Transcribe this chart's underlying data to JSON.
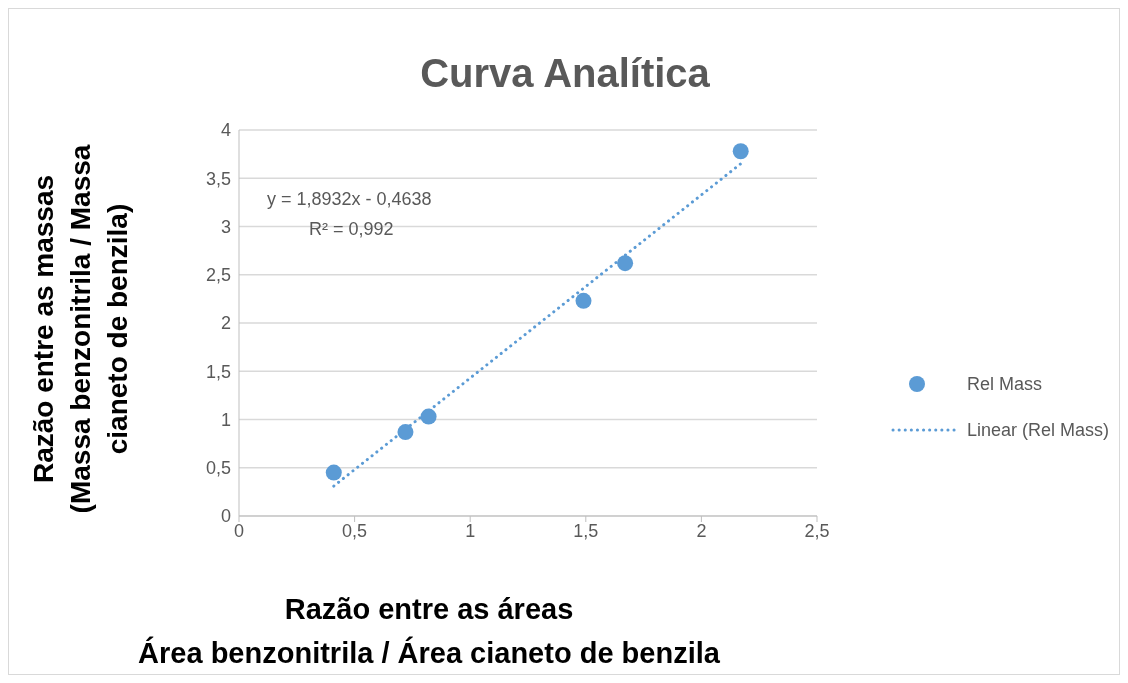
{
  "chart_data": {
    "type": "scatter",
    "title": "Curva Analítica",
    "xlabel": "Razão entre as áreas\nÁrea benzonitrila / Área cianeto de benzila",
    "ylabel": "Razão entre as massas\n(Massa benzonitrila / Massa\ncianeto de benzila)",
    "series": [
      {
        "name": "Rel Mass",
        "color": "#5b9bd5",
        "x": [
          0.41,
          0.72,
          0.82,
          1.49,
          1.67,
          2.17
        ],
        "values": [
          0.45,
          0.87,
          1.03,
          2.23,
          2.62,
          3.78
        ],
        "marker": "circle"
      },
      {
        "name": "Linear (Rel Mass)",
        "type": "line",
        "color": "#5b9bd5",
        "x": [
          0.41,
          2.17
        ],
        "values": [
          0.31,
          3.65
        ],
        "marker": "none",
        "line_style": "dotted"
      }
    ],
    "annotations": [
      "y = 1,8932x - 0,4638",
      "R² = 0,992"
    ],
    "xlim": [
      0,
      2.5
    ],
    "xticks": [
      0,
      {
        "value": 0.5,
        "label": "0,5"
      },
      1,
      {
        "value": 1.5,
        "label": "1,5"
      },
      2,
      {
        "value": 2.5,
        "label": "2,5"
      }
    ],
    "ylim": [
      0,
      4
    ],
    "yticks": [
      0,
      {
        "value": 0.5,
        "label": "0,5"
      },
      1,
      {
        "value": 1.5,
        "label": "1,5"
      },
      2,
      {
        "value": 2.5,
        "label": "2,5"
      },
      3,
      {
        "value": 3.5,
        "label": "3,5"
      },
      4
    ],
    "grid": "y",
    "legend": "right"
  }
}
